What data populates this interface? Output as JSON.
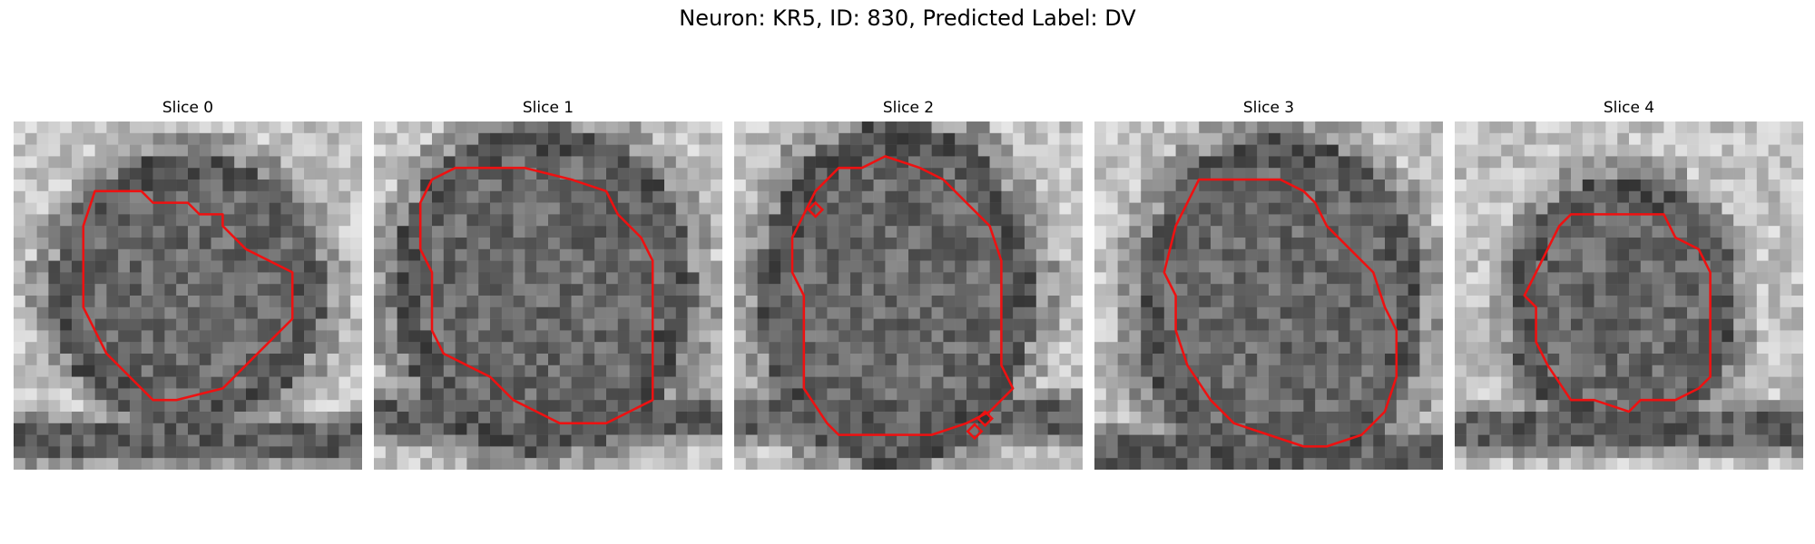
{
  "figure": {
    "title": "Neuron: KR5, ID: 830, Predicted Label: DV"
  },
  "colors": {
    "contour": "#ee1111",
    "background": "#ffffff",
    "colormap": "grayscale"
  },
  "panels": [
    {
      "title": "Slice 0"
    },
    {
      "title": "Slice 1"
    },
    {
      "title": "Slice 2"
    },
    {
      "title": "Slice 3"
    },
    {
      "title": "Slice 4"
    }
  ]
}
